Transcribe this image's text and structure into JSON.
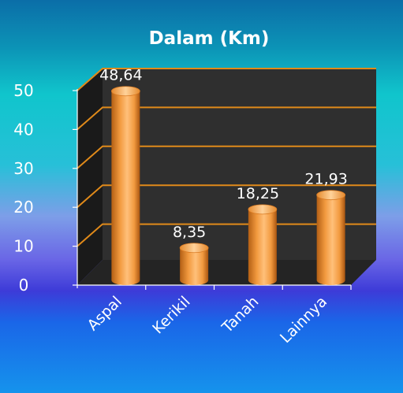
{
  "chart_data": {
    "type": "bar",
    "title": "Dalam (Km)",
    "categories": [
      "Aspal",
      "Kerikil",
      "Tanah",
      "Lainnya"
    ],
    "values": [
      48.64,
      8.35,
      18.25,
      21.93
    ],
    "value_labels": [
      "48,64",
      "8,35",
      "18,25",
      "21,93"
    ],
    "y_ticks": [
      "0",
      "10",
      "20",
      "30",
      "40",
      "50"
    ],
    "ylim": [
      0,
      50
    ],
    "grid": true,
    "legend": "none",
    "colors": {
      "bar": "#f29a3f",
      "bar_dark": "#b35f14",
      "bar_light": "#ffd29a",
      "gridline": "#e08a1a",
      "plot_wall": "#2b2b2b",
      "text": "#ffffff"
    }
  }
}
